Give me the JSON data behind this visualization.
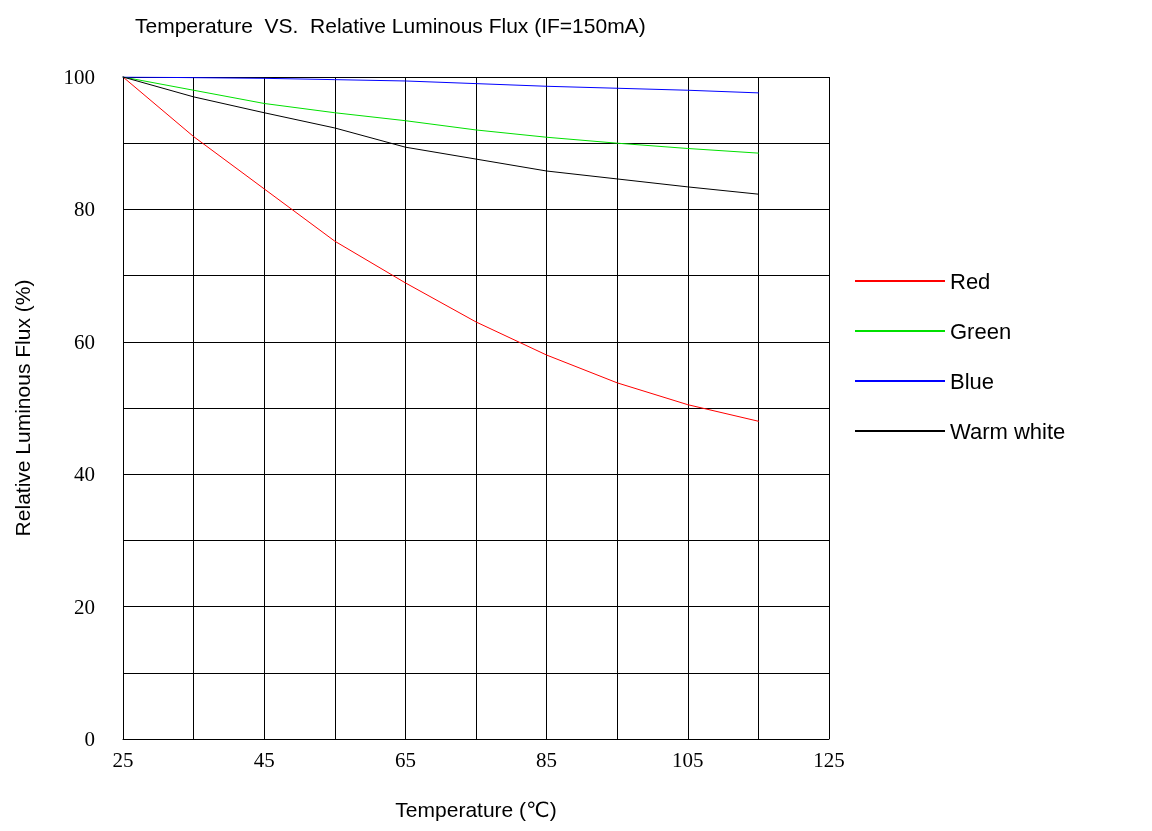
{
  "chart_data": {
    "type": "line",
    "title": "Temperature  VS.  Relative Luminous Flux (IF=150mA)",
    "xlabel": "Temperature (℃)",
    "ylabel": "Relative Luminous Flux (%)",
    "x": [
      25,
      35,
      45,
      55,
      65,
      75,
      85,
      95,
      105,
      115
    ],
    "series": [
      {
        "name": "Red",
        "color": "#ff0000",
        "values": [
          100,
          91,
          83.1,
          75.2,
          68.9,
          63,
          58,
          53.8,
          50.5,
          48
        ]
      },
      {
        "name": "Green",
        "color": "#00e000",
        "values": [
          100,
          98,
          96,
          94.6,
          93.4,
          92,
          90.9,
          90,
          89.2,
          88.5
        ]
      },
      {
        "name": "Blue",
        "color": "#0000ff",
        "values": [
          100,
          99.9,
          99.8,
          99.6,
          99.4,
          99,
          98.6,
          98.3,
          98,
          97.6
        ]
      },
      {
        "name": "Warm white",
        "color": "#000000",
        "values": [
          100,
          97,
          94.6,
          92.3,
          89.4,
          87.6,
          85.8,
          84.6,
          83.4,
          82.3
        ]
      }
    ],
    "xlim": [
      25,
      125
    ],
    "xticks": [
      25,
      {
        "value": 35,
        "label": null
      },
      45,
      {
        "value": 55,
        "label": null
      },
      65,
      {
        "value": 75,
        "label": null
      },
      85,
      {
        "value": 95,
        "label": null
      },
      105,
      {
        "value": 115,
        "label": null
      },
      125
    ],
    "ylim": [
      0,
      100
    ],
    "yticks": [
      0,
      {
        "value": 10,
        "label": null
      },
      20,
      {
        "value": 30,
        "label": null
      },
      40,
      {
        "value": 50,
        "label": null
      },
      60,
      {
        "value": 70,
        "label": null
      },
      80,
      {
        "value": 90,
        "label": null
      },
      100
    ],
    "grid": true,
    "legend": "right",
    "marker": "none",
    "line_style": "solid"
  }
}
